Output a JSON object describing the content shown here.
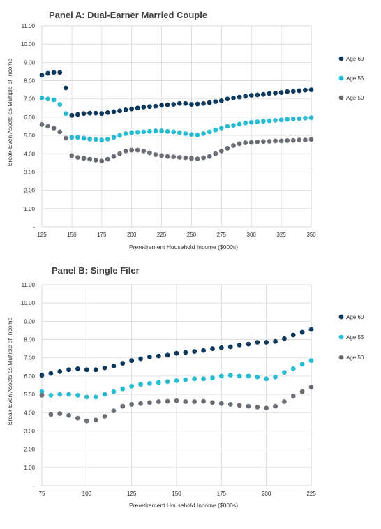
{
  "chart_data": [
    {
      "type": "scatter",
      "title": "Panel A: Dual-Earner Married Couple",
      "xlabel": "Preretirement Household Income ($000s)",
      "ylabel": "Break-Even Assets as Multiple of Income",
      "xlim": [
        125,
        350
      ],
      "ylim": [
        0,
        11
      ],
      "xticks": [
        "125",
        "150",
        "175",
        "200",
        "225",
        "250",
        "275",
        "300",
        "325",
        "350"
      ],
      "yticks": [
        "-",
        "1.00",
        "2.00",
        "3.00",
        "4.00",
        "5.00",
        "6.00",
        "7.00",
        "8.00",
        "9.00",
        "10.00",
        "11.00"
      ],
      "grid": true,
      "legend": "right",
      "x": [
        125,
        130,
        135,
        140,
        145,
        150,
        155,
        160,
        165,
        170,
        175,
        180,
        185,
        190,
        195,
        200,
        205,
        210,
        215,
        220,
        225,
        230,
        235,
        240,
        245,
        250,
        255,
        260,
        265,
        270,
        275,
        280,
        285,
        290,
        295,
        300,
        305,
        310,
        315,
        320,
        325,
        330,
        335,
        340,
        345,
        350
      ],
      "series": [
        {
          "name": "Age 60",
          "color": "#0d3a5c",
          "values": [
            8.3,
            8.4,
            8.45,
            8.45,
            7.6,
            6.1,
            6.15,
            6.2,
            6.22,
            6.22,
            6.2,
            6.25,
            6.3,
            6.35,
            6.4,
            6.45,
            6.5,
            6.55,
            6.58,
            6.6,
            6.65,
            6.68,
            6.7,
            6.75,
            6.75,
            6.7,
            6.72,
            6.75,
            6.8,
            6.85,
            6.9,
            7.0,
            7.05,
            7.1,
            7.15,
            7.2,
            7.22,
            7.25,
            7.3,
            7.32,
            7.35,
            7.4,
            7.42,
            7.45,
            7.48,
            7.5
          ]
        },
        {
          "name": "Age 55",
          "color": "#27bcd1",
          "values": [
            7.05,
            7.0,
            6.95,
            6.7,
            6.2,
            4.9,
            4.9,
            4.85,
            4.8,
            4.78,
            4.75,
            4.8,
            4.9,
            5.0,
            5.1,
            5.15,
            5.18,
            5.2,
            5.22,
            5.25,
            5.25,
            5.22,
            5.2,
            5.15,
            5.1,
            5.05,
            5.02,
            5.1,
            5.2,
            5.3,
            5.4,
            5.5,
            5.55,
            5.62,
            5.68,
            5.72,
            5.75,
            5.78,
            5.8,
            5.83,
            5.85,
            5.88,
            5.9,
            5.92,
            5.95,
            5.97
          ]
        },
        {
          "name": "Age 50",
          "color": "#6b6e75",
          "values": [
            5.6,
            5.5,
            5.4,
            5.2,
            4.85,
            3.9,
            3.8,
            3.75,
            3.7,
            3.65,
            3.6,
            3.7,
            3.85,
            4.0,
            4.15,
            4.2,
            4.2,
            4.15,
            4.05,
            3.95,
            3.9,
            3.85,
            3.83,
            3.8,
            3.78,
            3.75,
            3.72,
            3.78,
            3.85,
            4.0,
            4.15,
            4.3,
            4.45,
            4.55,
            4.6,
            4.62,
            4.65,
            4.67,
            4.68,
            4.7,
            4.7,
            4.72,
            4.73,
            4.75,
            4.75,
            4.78
          ]
        }
      ]
    },
    {
      "type": "scatter",
      "title": "Panel B: Single Filer",
      "xlabel": "Preretirement Household Income ($000s)",
      "ylabel": "Break-Even Assets as Multiple of Income",
      "xlim": [
        75,
        225
      ],
      "ylim": [
        0,
        11
      ],
      "xticks": [
        "75",
        "100",
        "125",
        "150",
        "175",
        "200",
        "225"
      ],
      "yticks": [
        "-",
        "1.00",
        "2.00",
        "3.00",
        "4.00",
        "5.00",
        "6.00",
        "7.00",
        "8.00",
        "9.00",
        "10.00",
        "11.00"
      ],
      "grid": true,
      "legend": "right",
      "x": [
        75,
        80,
        85,
        90,
        95,
        100,
        105,
        110,
        115,
        120,
        125,
        130,
        135,
        140,
        145,
        150,
        155,
        160,
        165,
        170,
        175,
        180,
        185,
        190,
        195,
        200,
        205,
        210,
        215,
        220,
        225
      ],
      "series": [
        {
          "name": "Age 60",
          "color": "#0d3a5c",
          "values": [
            6.05,
            6.15,
            6.25,
            6.35,
            6.4,
            6.35,
            6.35,
            6.45,
            6.55,
            6.7,
            6.85,
            6.95,
            7.05,
            7.1,
            7.15,
            7.25,
            7.3,
            7.35,
            7.4,
            7.5,
            7.55,
            7.6,
            7.7,
            7.75,
            7.85,
            7.85,
            7.9,
            8.05,
            8.25,
            8.4,
            8.55
          ]
        },
        {
          "name": "Age 55",
          "color": "#27bcd1",
          "values": [
            5.15,
            4.95,
            5.0,
            5.0,
            4.95,
            4.85,
            4.85,
            5.0,
            5.15,
            5.3,
            5.45,
            5.55,
            5.6,
            5.65,
            5.7,
            5.75,
            5.8,
            5.85,
            5.85,
            5.9,
            6.0,
            6.05,
            6.0,
            6.0,
            5.95,
            5.85,
            5.95,
            6.2,
            6.4,
            6.65,
            6.85
          ]
        },
        {
          "name": "Age 50",
          "color": "#6b6e75",
          "values": [
            4.95,
            3.9,
            3.95,
            3.85,
            3.7,
            3.55,
            3.6,
            3.8,
            4.1,
            4.35,
            4.45,
            4.5,
            4.55,
            4.6,
            4.62,
            4.65,
            4.6,
            4.6,
            4.62,
            4.55,
            4.5,
            4.45,
            4.4,
            4.35,
            4.3,
            4.25,
            4.35,
            4.6,
            4.9,
            5.15,
            5.4
          ]
        }
      ]
    }
  ]
}
